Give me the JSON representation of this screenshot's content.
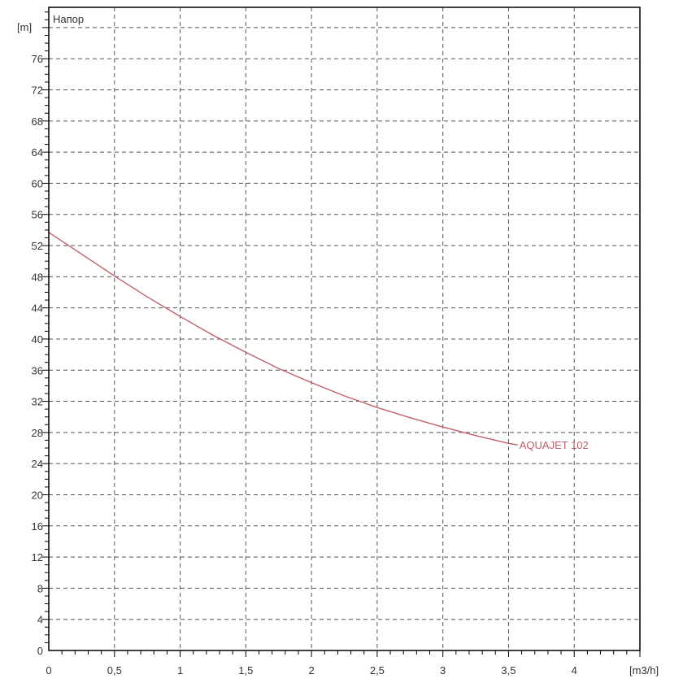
{
  "chart_data": {
    "type": "line",
    "title": "Напор",
    "xlabel": "[m3/h]",
    "ylabel": "[m]",
    "xlim": [
      0,
      4.5
    ],
    "ylim": [
      0,
      82.6
    ],
    "grid": true,
    "x_ticks": [
      "0",
      "0,5",
      "1",
      "1,5",
      "2",
      "2,5",
      "3",
      "3,5",
      "4"
    ],
    "x_tick_values": [
      0,
      0.5,
      1,
      1.5,
      2,
      2.5,
      3,
      3.5,
      4
    ],
    "y_ticks": [
      0,
      4,
      8,
      12,
      16,
      20,
      24,
      28,
      32,
      36,
      40,
      44,
      48,
      52,
      56,
      60,
      64,
      68,
      72,
      76
    ],
    "series": [
      {
        "name": "AQUAJET 102",
        "color": "#c06068",
        "x": [
          0,
          0.25,
          0.5,
          0.75,
          1,
          1.25,
          1.5,
          1.75,
          2,
          2.25,
          2.5,
          2.75,
          3,
          3.25,
          3.5,
          3.57
        ],
        "y": [
          53.7,
          50.9,
          48.1,
          45.4,
          42.9,
          40.5,
          38.3,
          36.2,
          34.4,
          32.7,
          31.2,
          29.9,
          28.7,
          27.6,
          26.6,
          26.4
        ]
      }
    ]
  }
}
